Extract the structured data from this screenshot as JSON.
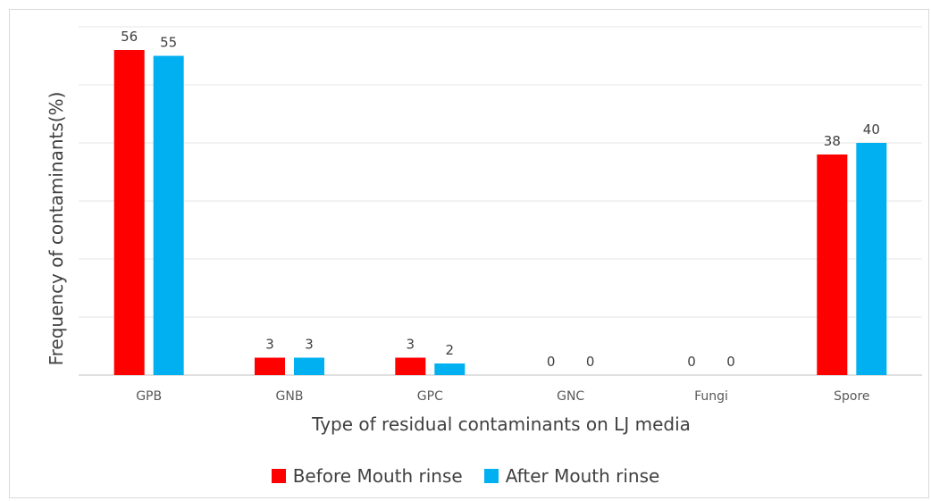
{
  "chart_data": {
    "type": "bar",
    "title": "",
    "xlabel": "Type of residual contaminants on LJ media",
    "ylabel": "Frequency of contaminants(%)",
    "categories": [
      "GPB",
      "GNB",
      "GPC",
      "GNC",
      "Fungi",
      "Spore"
    ],
    "series": [
      {
        "name": "Before Mouth rinse",
        "color": "#ff0000",
        "values": [
          56,
          3,
          3,
          0,
          0,
          38
        ]
      },
      {
        "name": "After Mouth rinse",
        "color": "#00b0f0",
        "values": [
          55,
          3,
          2,
          0,
          0,
          40
        ]
      }
    ],
    "ylim": [
      0,
      60
    ],
    "grid": true,
    "legend_position": "bottom"
  }
}
